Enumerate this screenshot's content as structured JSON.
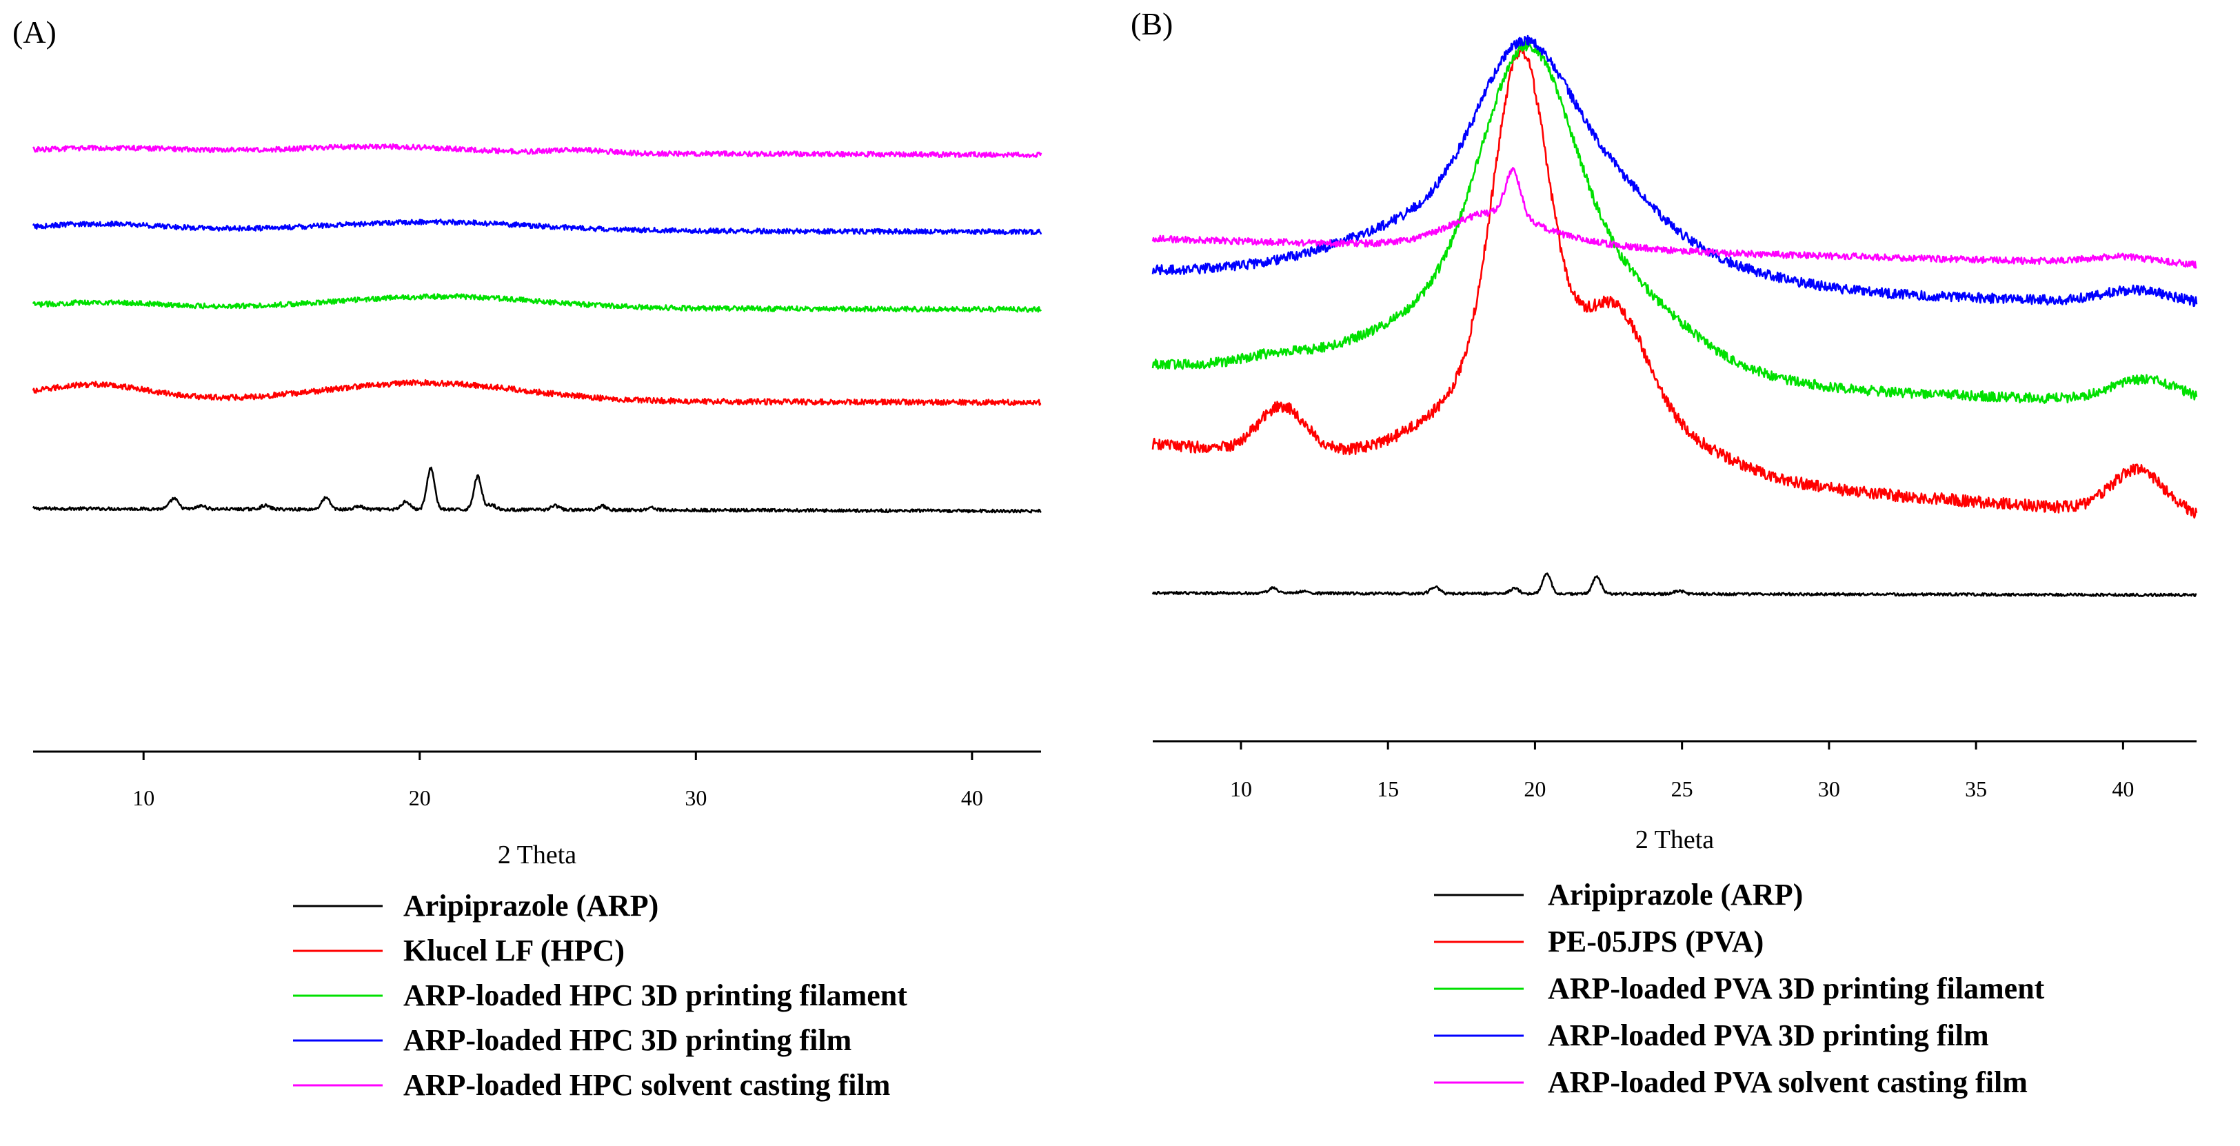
{
  "colors": {
    "arp": "#000000",
    "polymer": "#ff0000",
    "filament": "#00e000",
    "printfilm": "#0000ff",
    "castfilm": "#ff00ff"
  },
  "chart_data": [
    {
      "panel": "(A)",
      "type": "line",
      "xlabel": "2 Theta",
      "ylabel": "",
      "xlim": [
        6,
        42.5
      ],
      "ylim": [
        0,
        100
      ],
      "xticks": [
        10,
        20,
        30,
        40
      ],
      "grid": false,
      "legend": [
        {
          "key": "arp",
          "label": "Aripiprazole (ARP)"
        },
        {
          "key": "polymer",
          "label": "Klucel LF (HPC)"
        },
        {
          "key": "filament",
          "label": "ARP-loaded HPC 3D printing filament"
        },
        {
          "key": "printfilm",
          "label": "ARP-loaded HPC 3D printing film"
        },
        {
          "key": "castfilm",
          "label": "ARP-loaded HPC solvent casting film"
        }
      ],
      "series": [
        {
          "key": "arp",
          "name": "Aripiprazole (ARP)",
          "baseline": 23,
          "tilt": -0.5,
          "noise": 0.3,
          "peaks": [
            [
              11.1,
              2.0,
              0.15
            ],
            [
              12.1,
              0.6,
              0.15
            ],
            [
              14.4,
              0.7,
              0.15
            ],
            [
              16.6,
              2.2,
              0.15
            ],
            [
              17.8,
              0.6,
              0.15
            ],
            [
              19.5,
              1.6,
              0.15
            ],
            [
              20.4,
              8.0,
              0.14
            ],
            [
              22.1,
              6.4,
              0.14
            ],
            [
              22.6,
              1.0,
              0.15
            ],
            [
              24.9,
              0.8,
              0.15
            ],
            [
              26.6,
              0.8,
              0.15
            ],
            [
              28.4,
              0.5,
              0.15
            ]
          ]
        },
        {
          "key": "polymer",
          "name": "Klucel LF (HPC)",
          "baseline": 44,
          "tilt": -0.5,
          "noise": 0.55,
          "peaks": [
            [
              8.2,
              3.0,
              2.0
            ],
            [
              20.2,
              3.5,
              3.5
            ]
          ]
        },
        {
          "key": "filament",
          "name": "ARP-loaded HPC 3D printing filament",
          "baseline": 62,
          "tilt": -0.5,
          "noise": 0.5,
          "peaks": [
            [
              8.5,
              0.9,
              2.0
            ],
            [
              20.8,
              2.2,
              3.5
            ]
          ]
        },
        {
          "key": "printfilm",
          "name": "ARP-loaded HPC 3D printing film",
          "baseline": 77,
          "tilt": -0.5,
          "noise": 0.5,
          "peaks": [
            [
              8.5,
              1.1,
              2.0
            ],
            [
              20.5,
              1.6,
              3.5
            ]
          ]
        },
        {
          "key": "castfilm",
          "name": "ARP-loaded HPC solvent casting film",
          "baseline": 92,
          "tilt": -0.6,
          "noise": 0.5,
          "peaks": [
            [
              9.0,
              0.8,
              2.5
            ],
            [
              18.5,
              1.2,
              3.0
            ],
            [
              25.8,
              0.6,
              1.0
            ]
          ]
        }
      ]
    },
    {
      "panel": "(B)",
      "type": "line",
      "xlabel": "2 Theta",
      "ylabel": "",
      "xlim": [
        7,
        42.5
      ],
      "ylim": [
        0,
        100
      ],
      "xticks": [
        10,
        15,
        20,
        25,
        30,
        35,
        40
      ],
      "grid": false,
      "legend": [
        {
          "key": "arp",
          "label": "Aripiprazole (ARP)"
        },
        {
          "key": "polymer",
          "label": "PE-05JPS (PVA)"
        },
        {
          "key": "filament",
          "label": "ARP-loaded PVA 3D printing filament"
        },
        {
          "key": "printfilm",
          "label": "ARP-loaded PVA 3D printing film"
        },
        {
          "key": "castfilm",
          "label": "ARP-loaded PVA solvent casting film"
        }
      ],
      "series": [
        {
          "key": "arp",
          "name": "Aripiprazole (ARP)",
          "baseline": 12.5,
          "tilt": -0.3,
          "noise": 0.2,
          "peaks": [
            [
              11.1,
              0.8,
              0.15
            ],
            [
              12.1,
              0.3,
              0.15
            ],
            [
              16.6,
              1.0,
              0.15
            ],
            [
              19.3,
              0.8,
              0.15
            ],
            [
              20.4,
              3.0,
              0.14
            ],
            [
              22.1,
              2.6,
              0.14
            ],
            [
              24.9,
              0.5,
              0.15
            ]
          ]
        },
        {
          "key": "polymer",
          "name": "PE-05JPS (PVA)",
          "baseline": 35,
          "tilt": -11,
          "noise": 0.9,
          "peaks": [
            [
              11.4,
              7.0,
              0.8
            ],
            [
              19.5,
              46.0,
              0.9
            ],
            [
              19.5,
              13.0,
              2.6
            ],
            [
              22.8,
              12.0,
              1.0
            ],
            [
              22.8,
              8.0,
              3.0
            ],
            [
              40.5,
              6.5,
              0.9
            ]
          ]
        },
        {
          "key": "filament",
          "name": "ARP-loaded PVA 3D printing filament",
          "baseline": 47,
          "tilt": -6,
          "noise": 0.75,
          "peaks": [
            [
              11.0,
              1.0,
              1.0
            ],
            [
              19.7,
              34.0,
              1.5
            ],
            [
              19.7,
              15.0,
              4.0
            ],
            [
              23.0,
              5.0,
              2.0
            ],
            [
              40.8,
              3.5,
              1.2
            ]
          ]
        },
        {
          "key": "printfilm",
          "name": "ARP-loaded PVA 3D printing film",
          "baseline": 61,
          "tilt": -5,
          "noise": 0.75,
          "peaks": [
            [
              19.6,
              22.0,
              1.5
            ],
            [
              19.6,
              14.0,
              4.5
            ],
            [
              22.6,
              5.0,
              1.5
            ],
            [
              40.5,
              2.0,
              1.2
            ]
          ]
        },
        {
          "key": "castfilm",
          "name": "ARP-loaded PVA solvent casting film",
          "baseline": 66,
          "tilt": -4,
          "noise": 0.5,
          "peaks": [
            [
              18.5,
              4.0,
              1.4
            ],
            [
              19.25,
              7.0,
              0.25
            ],
            [
              20.0,
              1.5,
              2.5
            ],
            [
              40.0,
              1.0,
              1.2
            ]
          ]
        }
      ]
    }
  ]
}
